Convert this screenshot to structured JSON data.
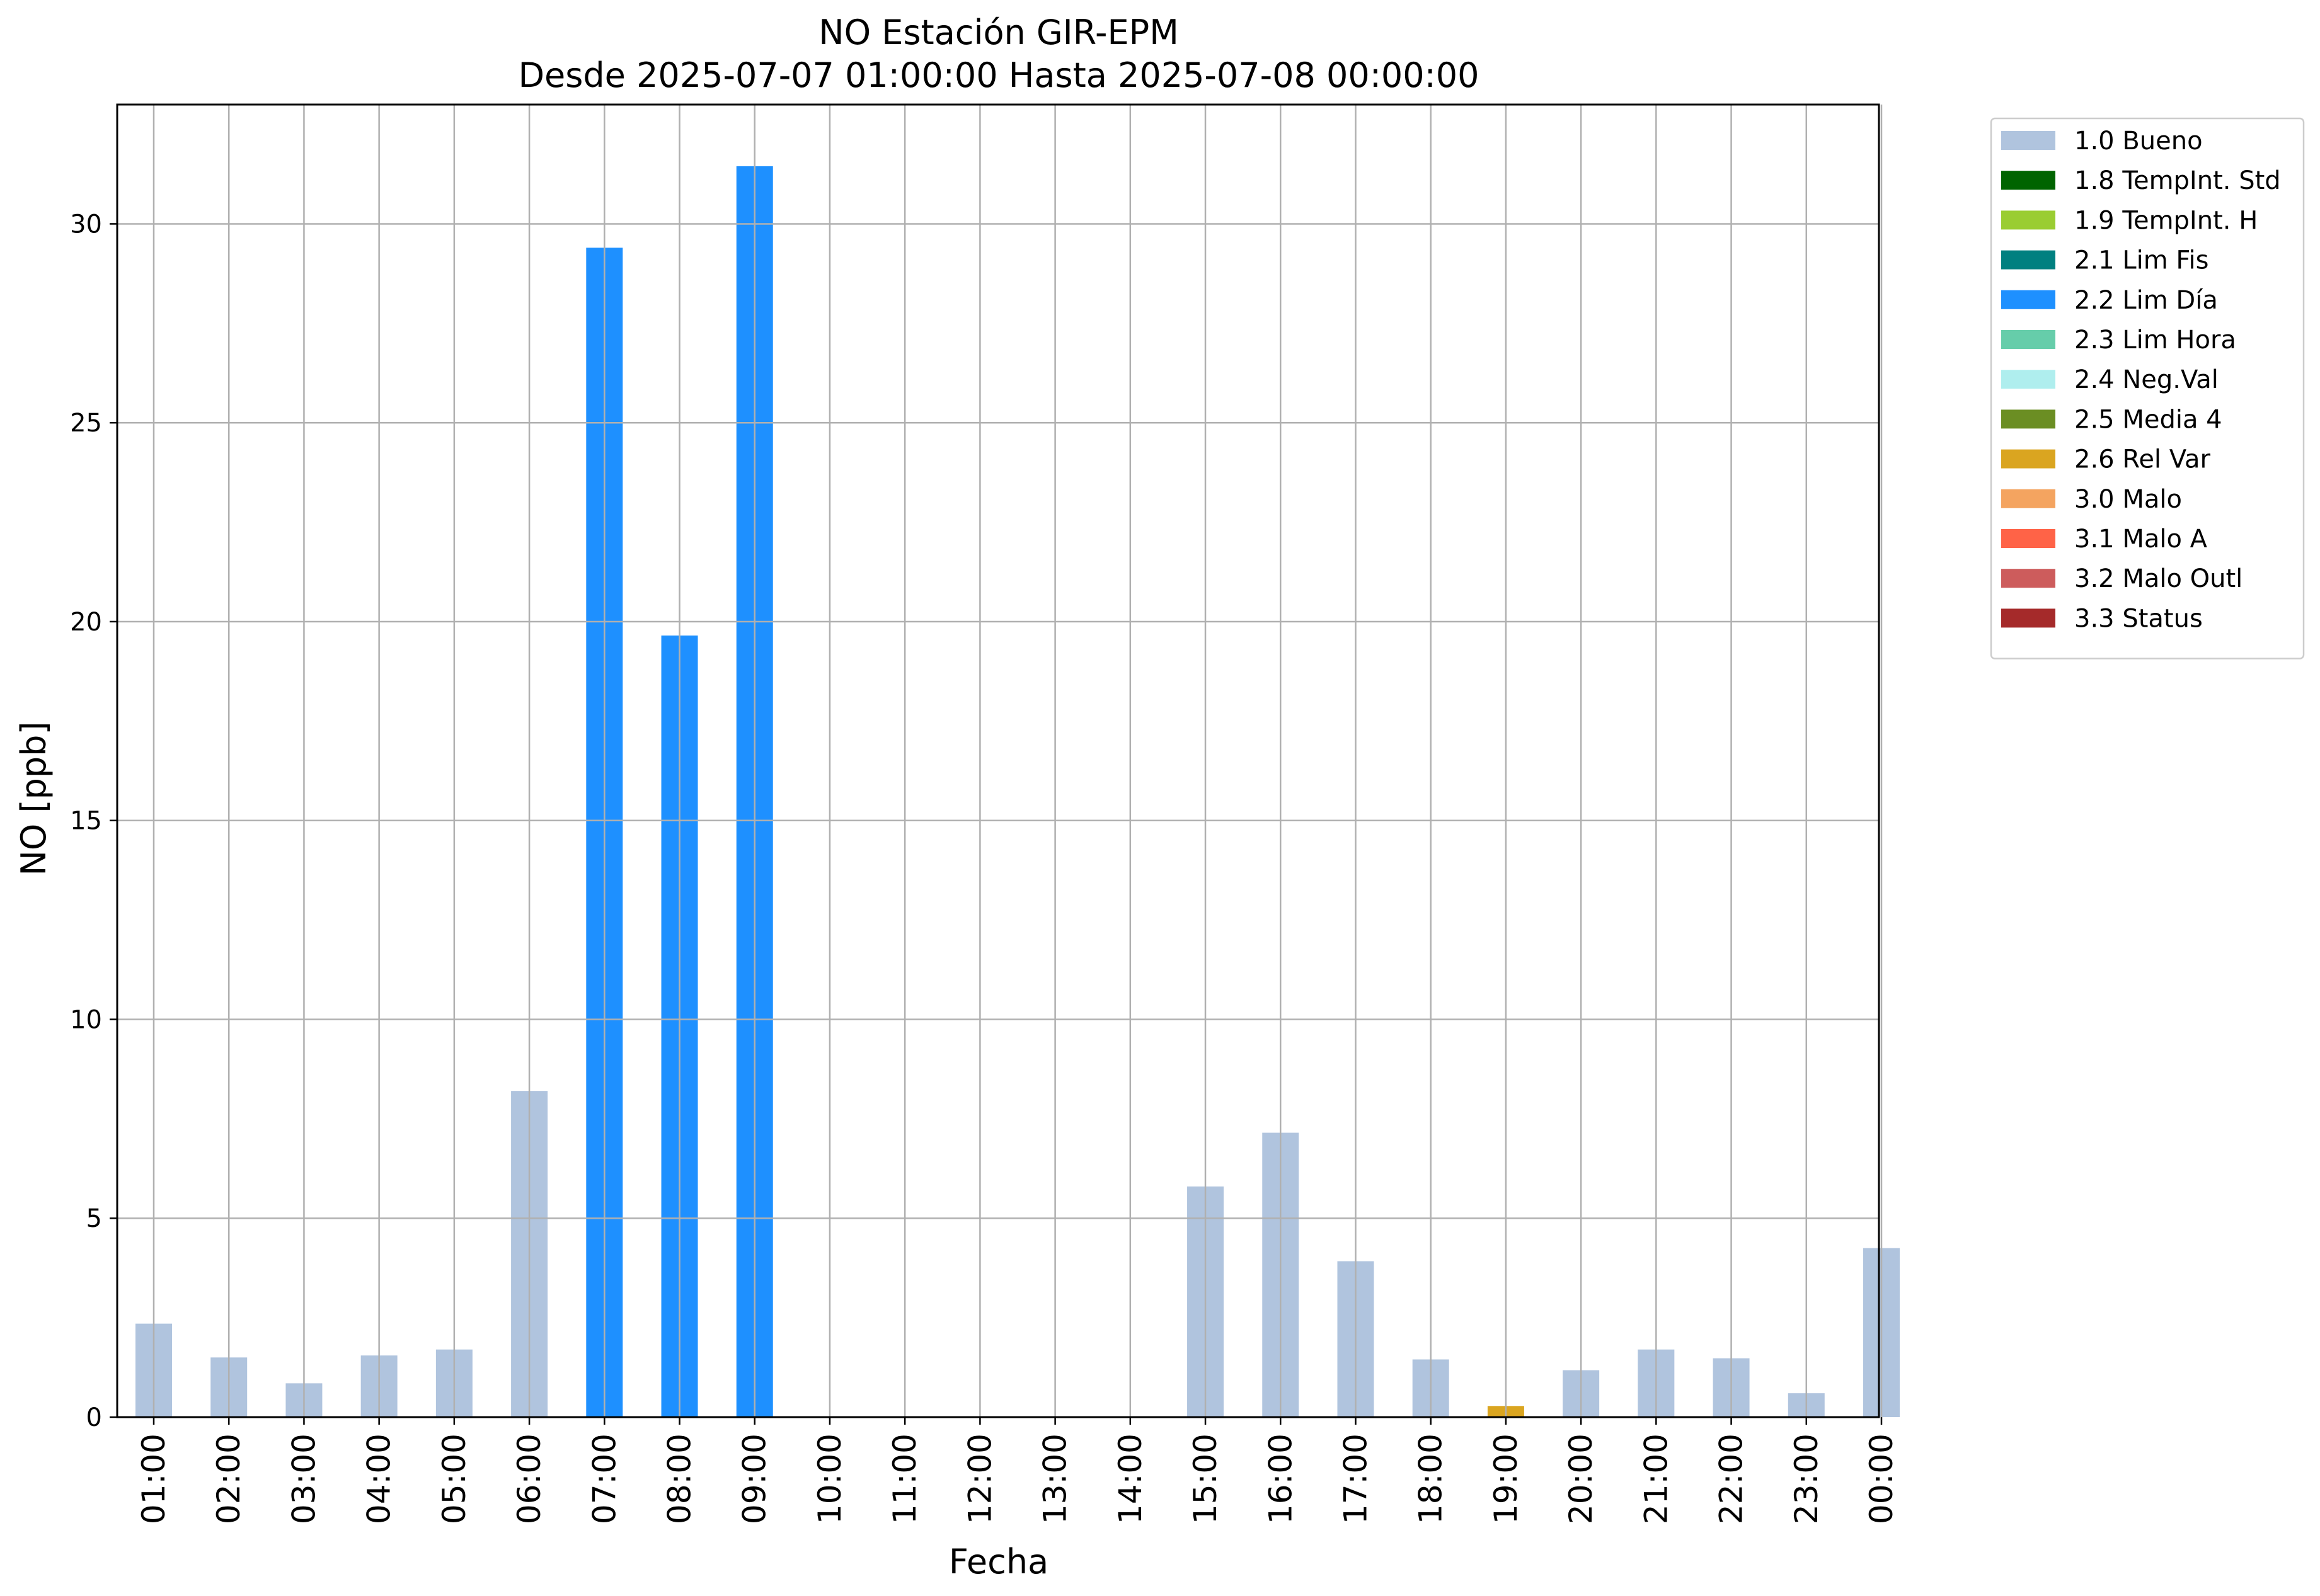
{
  "chart_data": {
    "type": "bar",
    "title": "NO Estación GIR-EPM",
    "subtitle": "Desde 2025-07-07 01:00:00 Hasta 2025-07-08 00:00:00",
    "xlabel": "Fecha",
    "ylabel": "NO [ppb]",
    "ylim": [
      0,
      33
    ],
    "yticks": [
      0,
      5,
      10,
      15,
      20,
      25,
      30
    ],
    "grid": true,
    "legend_position": "outside-top-right",
    "categories": [
      "01:00",
      "02:00",
      "03:00",
      "04:00",
      "05:00",
      "06:00",
      "07:00",
      "08:00",
      "09:00",
      "10:00",
      "11:00",
      "12:00",
      "13:00",
      "14:00",
      "15:00",
      "16:00",
      "17:00",
      "18:00",
      "19:00",
      "20:00",
      "21:00",
      "22:00",
      "23:00",
      "00:00"
    ],
    "values": [
      2.35,
      1.5,
      0.85,
      1.55,
      1.7,
      8.2,
      29.4,
      19.65,
      31.45,
      null,
      null,
      null,
      null,
      null,
      5.8,
      7.15,
      3.92,
      1.45,
      0.28,
      1.18,
      1.7,
      1.48,
      0.6,
      4.25
    ],
    "flags": [
      "1.0 Bueno",
      "1.0 Bueno",
      "1.0 Bueno",
      "1.0 Bueno",
      "1.0 Bueno",
      "1.0 Bueno",
      "2.2 Lim Día",
      "2.2 Lim Día",
      "2.2 Lim Día",
      null,
      null,
      null,
      null,
      null,
      "1.0 Bueno",
      "1.0 Bueno",
      "1.0 Bueno",
      "1.0 Bueno",
      "2.6 Rel Var",
      "1.0 Bueno",
      "1.0 Bueno",
      "1.0 Bueno",
      "1.0 Bueno",
      "1.0 Bueno"
    ],
    "legend": [
      {
        "label": "1.0 Bueno",
        "color": "#b0c4de"
      },
      {
        "label": "1.8 TempInt. Std",
        "color": "#006400"
      },
      {
        "label": "1.9 TempInt. H",
        "color": "#9acd32"
      },
      {
        "label": "2.1 Lim Fis",
        "color": "#008080"
      },
      {
        "label": "2.2 Lim Día",
        "color": "#1e90ff"
      },
      {
        "label": "2.3 Lim Hora",
        "color": "#66cdaa"
      },
      {
        "label": "2.4 Neg.Val",
        "color": "#afeeee"
      },
      {
        "label": "2.5 Media 4",
        "color": "#6b8e23"
      },
      {
        "label": "2.6 Rel Var",
        "color": "#daa520"
      },
      {
        "label": "3.0 Malo",
        "color": "#f4a460"
      },
      {
        "label": "3.1 Malo A",
        "color": "#ff6347"
      },
      {
        "label": "3.2 Malo Outl",
        "color": "#cd5c5c"
      },
      {
        "label": "3.3 Status",
        "color": "#a52a2a"
      }
    ]
  }
}
